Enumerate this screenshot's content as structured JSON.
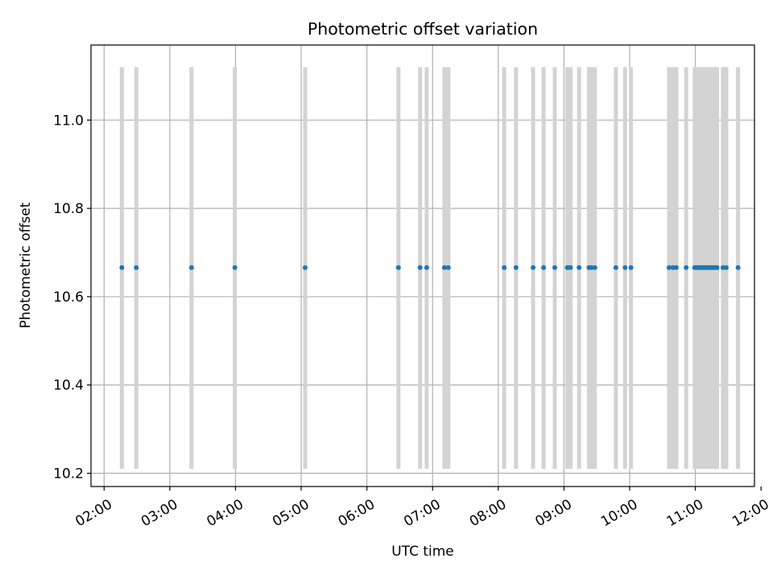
{
  "chart_data": {
    "type": "scatter",
    "title": "Photometric offset variation",
    "xlabel": "UTC time",
    "ylabel": "Photometric offset",
    "x_unit": "hours UTC",
    "xlim": [
      1.8,
      11.9
    ],
    "ylim": [
      10.17,
      11.17
    ],
    "grid": true,
    "x_ticks": [
      {
        "value": 2,
        "label": "02:00"
      },
      {
        "value": 3,
        "label": "03:00"
      },
      {
        "value": 4,
        "label": "04:00"
      },
      {
        "value": 5,
        "label": "05:00"
      },
      {
        "value": 6,
        "label": "06:00"
      },
      {
        "value": 7,
        "label": "07:00"
      },
      {
        "value": 8,
        "label": "08:00"
      },
      {
        "value": 9,
        "label": "09:00"
      },
      {
        "value": 10,
        "label": "10:00"
      },
      {
        "value": 11,
        "label": "11:00"
      },
      {
        "value": 12,
        "label": "12:00"
      }
    ],
    "y_ticks": [
      {
        "value": 10.2,
        "label": "10.2"
      },
      {
        "value": 10.4,
        "label": "10.4"
      },
      {
        "value": 10.6,
        "label": "10.6"
      },
      {
        "value": 10.8,
        "label": "10.8"
      },
      {
        "value": 11.0,
        "label": "11.0"
      }
    ],
    "errorbar_range": [
      10.21,
      11.12
    ],
    "errorbar_color": "#d3d3d3",
    "point_color": "#1f77b4",
    "y_value": 10.666,
    "x": [
      2.27,
      2.49,
      3.33,
      3.99,
      5.06,
      6.48,
      6.81,
      6.91,
      7.18,
      7.24,
      8.09,
      8.27,
      8.53,
      8.69,
      8.86,
      9.05,
      9.08,
      9.1,
      9.23,
      9.38,
      9.42,
      9.47,
      9.79,
      9.93,
      10.02,
      10.6,
      10.66,
      10.71,
      10.86,
      10.99,
      11.02,
      11.05,
      11.07,
      11.1,
      11.12,
      11.15,
      11.18,
      11.21,
      11.24,
      11.27,
      11.3,
      11.33,
      11.42,
      11.47,
      11.65
    ]
  }
}
